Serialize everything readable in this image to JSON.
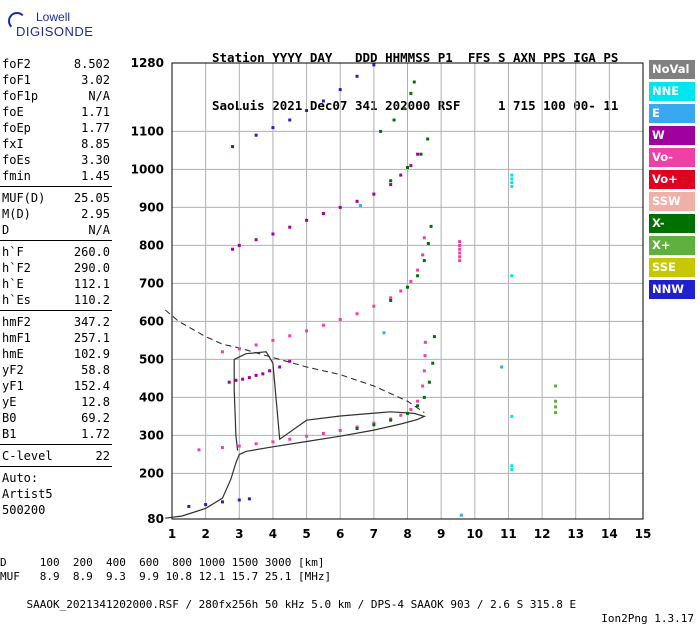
{
  "logo": {
    "line1": "Lowell",
    "line2": "DIGISONDE"
  },
  "header": {
    "line1": "Station YYYY DAY   DDD HHMMSS P1  FFS S AXN PPS IGA PS",
    "line2": "SaoLuis 2021 Dec07 341 202000 RSF     1 715 100 00- 11"
  },
  "params": [
    {
      "label": "foF2",
      "value": "8.502"
    },
    {
      "label": "foF1",
      "value": "3.02"
    },
    {
      "label": "foF1p",
      "value": "N/A"
    },
    {
      "label": "foE",
      "value": "1.71"
    },
    {
      "label": "foEp",
      "value": "1.77"
    },
    {
      "label": "fxI",
      "value": "8.85"
    },
    {
      "label": "foEs",
      "value": "3.30"
    },
    {
      "label": "fmin",
      "value": "1.45"
    },
    {
      "sep": true
    },
    {
      "label": "MUF(D)",
      "value": "25.05"
    },
    {
      "label": "M(D)",
      "value": "2.95"
    },
    {
      "label": "D",
      "value": "N/A"
    },
    {
      "sep": true
    },
    {
      "label": "h`F",
      "value": "260.0"
    },
    {
      "label": "h`F2",
      "value": "290.0"
    },
    {
      "label": "h`E",
      "value": "112.1"
    },
    {
      "label": "h`Es",
      "value": "110.2"
    },
    {
      "sep": true
    },
    {
      "label": "hmF2",
      "value": "347.2"
    },
    {
      "label": "hmF1",
      "value": "257.1"
    },
    {
      "label": "hmE",
      "value": "102.9"
    },
    {
      "label": "yF2",
      "value": "58.8"
    },
    {
      "label": "yF1",
      "value": "152.4"
    },
    {
      "label": "yE",
      "value": "12.8"
    },
    {
      "label": "B0",
      "value": "69.2"
    },
    {
      "label": "B1",
      "value": "1.72"
    },
    {
      "sep": true
    },
    {
      "label": "C-level",
      "value": "22"
    },
    {
      "sep": true
    },
    {
      "label": "Auto:",
      "value": ""
    },
    {
      "label": "Artist5",
      "value": ""
    },
    {
      "label": "500200",
      "value": ""
    }
  ],
  "legend": [
    {
      "label": "NoVal",
      "color": "#808080"
    },
    {
      "label": "NNE",
      "color": "#00e5ee"
    },
    {
      "label": "E",
      "color": "#38a8f0"
    },
    {
      "label": "W",
      "color": "#a000a0"
    },
    {
      "label": "Vo-",
      "color": "#f040a8"
    },
    {
      "label": "Vo+",
      "color": "#e00020"
    },
    {
      "label": "SSW",
      "color": "#f0b0a8"
    },
    {
      "label": "X-",
      "color": "#007000"
    },
    {
      "label": "X+",
      "color": "#60b040"
    },
    {
      "label": "SSE",
      "color": "#c8c800"
    },
    {
      "label": "NNW",
      "color": "#2020d0"
    }
  ],
  "chart_data": {
    "type": "scatter",
    "xlabel": "",
    "ylabel": "",
    "xlim": [
      1,
      15
    ],
    "ylim": [
      80,
      1280
    ],
    "x_ticks": [
      1,
      2,
      3,
      4,
      5,
      6,
      7,
      8,
      9,
      10,
      11,
      12,
      13,
      14,
      15
    ],
    "y_ticks": [
      80,
      200,
      300,
      400,
      500,
      600,
      700,
      800,
      900,
      1000,
      1100,
      1280
    ],
    "grid": true,
    "traces": [
      {
        "name": "o-trace 1st hop",
        "color": "#f040a8",
        "points": [
          [
            1.8,
            262
          ],
          [
            2.5,
            268
          ],
          [
            3,
            272
          ],
          [
            3.5,
            278
          ],
          [
            4,
            283
          ],
          [
            4.5,
            290
          ],
          [
            5,
            298
          ],
          [
            5.5,
            305
          ],
          [
            6,
            313
          ],
          [
            6.5,
            322
          ],
          [
            7,
            332
          ],
          [
            7.5,
            343
          ],
          [
            7.8,
            353
          ],
          [
            8.1,
            368
          ],
          [
            8.3,
            390
          ],
          [
            8.45,
            430
          ],
          [
            8.5,
            470
          ],
          [
            8.52,
            510
          ],
          [
            8.53,
            545
          ]
        ]
      },
      {
        "name": "x-trace 1st hop",
        "color": "#007000",
        "points": [
          [
            6.5,
            318
          ],
          [
            7,
            328
          ],
          [
            7.5,
            340
          ],
          [
            8,
            358
          ],
          [
            8.3,
            378
          ],
          [
            8.5,
            400
          ],
          [
            8.65,
            440
          ],
          [
            8.75,
            490
          ],
          [
            8.8,
            560
          ]
        ]
      },
      {
        "name": "2nd hop",
        "color": "#f040a8",
        "points": [
          [
            2.5,
            520
          ],
          [
            3,
            528
          ],
          [
            3.5,
            538
          ],
          [
            4,
            550
          ],
          [
            4.5,
            562
          ],
          [
            5,
            575
          ],
          [
            5.5,
            590
          ],
          [
            6,
            605
          ],
          [
            6.5,
            620
          ],
          [
            7,
            640
          ],
          [
            7.5,
            662
          ],
          [
            7.8,
            680
          ],
          [
            8.1,
            705
          ],
          [
            8.3,
            735
          ],
          [
            8.45,
            775
          ],
          [
            8.5,
            820
          ]
        ]
      },
      {
        "name": "x 2nd hop",
        "color": "#007000",
        "points": [
          [
            7.5,
            655
          ],
          [
            8,
            690
          ],
          [
            8.3,
            720
          ],
          [
            8.5,
            760
          ],
          [
            8.62,
            805
          ],
          [
            8.7,
            850
          ]
        ]
      },
      {
        "name": "3rd hop",
        "color": "#a000a0",
        "points": [
          [
            2.8,
            790
          ],
          [
            3,
            800
          ],
          [
            3.5,
            815
          ],
          [
            4,
            830
          ],
          [
            4.5,
            848
          ],
          [
            5,
            866
          ],
          [
            5.5,
            884
          ],
          [
            6,
            900
          ],
          [
            6.5,
            916
          ],
          [
            7,
            935
          ],
          [
            7.5,
            960
          ],
          [
            7.8,
            985
          ],
          [
            8.1,
            1010
          ],
          [
            8.3,
            1040
          ]
        ]
      },
      {
        "name": "x 3rd hop",
        "color": "#007000",
        "points": [
          [
            7.5,
            970
          ],
          [
            8,
            1005
          ],
          [
            8.4,
            1040
          ],
          [
            8.6,
            1080
          ]
        ]
      },
      {
        "name": "4th hop",
        "color": "#2020d0",
        "points": [
          [
            2.8,
            1060
          ],
          [
            3.5,
            1090
          ],
          [
            4,
            1110
          ],
          [
            4.5,
            1130
          ],
          [
            5,
            1155
          ],
          [
            5.5,
            1180
          ],
          [
            6,
            1210
          ],
          [
            6.5,
            1245
          ],
          [
            7,
            1275
          ]
        ]
      },
      {
        "name": "x 4th hop",
        "color": "#007000",
        "points": [
          [
            7.2,
            1100
          ],
          [
            7.6,
            1130
          ],
          [
            7.9,
            1160
          ],
          [
            8.1,
            1200
          ],
          [
            8.2,
            1230
          ]
        ]
      },
      {
        "name": "Es",
        "color": "#2020d0",
        "points": [
          [
            1.5,
            113
          ],
          [
            2,
            118
          ],
          [
            2.5,
            125
          ],
          [
            3,
            130
          ],
          [
            3.3,
            133
          ]
        ]
      },
      {
        "name": "F1 region",
        "color": "#a000a0",
        "points": [
          [
            2.7,
            440
          ],
          [
            2.9,
            445
          ],
          [
            3.1,
            448
          ],
          [
            3.3,
            452
          ],
          [
            3.5,
            458
          ],
          [
            3.7,
            462
          ],
          [
            3.9,
            470
          ],
          [
            4.2,
            480
          ],
          [
            4.5,
            495
          ]
        ]
      },
      {
        "name": "spread 9.5",
        "color": "#f040a8",
        "points": [
          [
            9.55,
            760
          ],
          [
            9.55,
            770
          ],
          [
            9.55,
            780
          ],
          [
            9.55,
            790
          ],
          [
            9.55,
            800
          ],
          [
            9.55,
            810
          ]
        ]
      },
      {
        "name": "isolated 11",
        "color": "#00e5ee",
        "points": [
          [
            11.1,
            955
          ],
          [
            11.1,
            965
          ],
          [
            11.1,
            975
          ],
          [
            11.1,
            985
          ],
          [
            11.1,
            720
          ],
          [
            11.1,
            350
          ],
          [
            11.1,
            220
          ],
          [
            11.1,
            210
          ]
        ]
      },
      {
        "name": "isolated 12.4",
        "color": "#60b040",
        "points": [
          [
            12.4,
            430
          ],
          [
            12.4,
            390
          ],
          [
            12.4,
            375
          ],
          [
            12.4,
            360
          ]
        ]
      },
      {
        "name": "isolated 10",
        "color": "#38a8f0",
        "points": [
          [
            10.8,
            480
          ],
          [
            7.3,
            570
          ],
          [
            9.6,
            90
          ],
          [
            6.6,
            905
          ]
        ]
      }
    ],
    "profile_solid": [
      [
        0.8,
        82
      ],
      [
        1.3,
        88
      ],
      [
        2,
        108
      ],
      [
        2.5,
        135
      ],
      [
        2.75,
        185
      ],
      [
        2.9,
        228
      ],
      [
        3,
        250
      ],
      [
        3.2,
        258
      ],
      [
        4,
        270
      ],
      [
        5,
        284
      ],
      [
        6,
        298
      ],
      [
        7,
        314
      ],
      [
        7.8,
        330
      ],
      [
        8.3,
        342
      ],
      [
        8.5,
        350
      ],
      [
        8.2,
        358
      ],
      [
        7.5,
        362
      ],
      [
        6,
        351
      ],
      [
        5,
        340
      ],
      [
        4.2,
        290
      ],
      [
        4.0,
        490
      ],
      [
        3.8,
        520
      ],
      [
        3.2,
        515
      ],
      [
        2.85,
        500
      ],
      [
        2.85,
        420
      ],
      [
        2.9,
        300
      ],
      [
        2.95,
        260
      ]
    ],
    "profile_dashed": [
      [
        0.8,
        630
      ],
      [
        1.2,
        600
      ],
      [
        2,
        560
      ],
      [
        2.5,
        540
      ],
      [
        3,
        530
      ],
      [
        4,
        505
      ],
      [
        5,
        480
      ],
      [
        6,
        460
      ],
      [
        7,
        430
      ],
      [
        8,
        390
      ],
      [
        8.5,
        360
      ]
    ]
  },
  "footer": {
    "line1": "D     100  200  400  600  800 1000 1500 3000 [km]",
    "line2": "MUF   8.9  8.9  9.3  9.9 10.8 12.1 15.7 25.1 [MHz]",
    "line3": "SAAOK_2021341202000.RSF / 280fx256h 50 kHz 5.0 km / DPS-4 SAAOK 903 / 2.6 S 315.8 E",
    "version": "Ion2Png 1.3.17"
  }
}
